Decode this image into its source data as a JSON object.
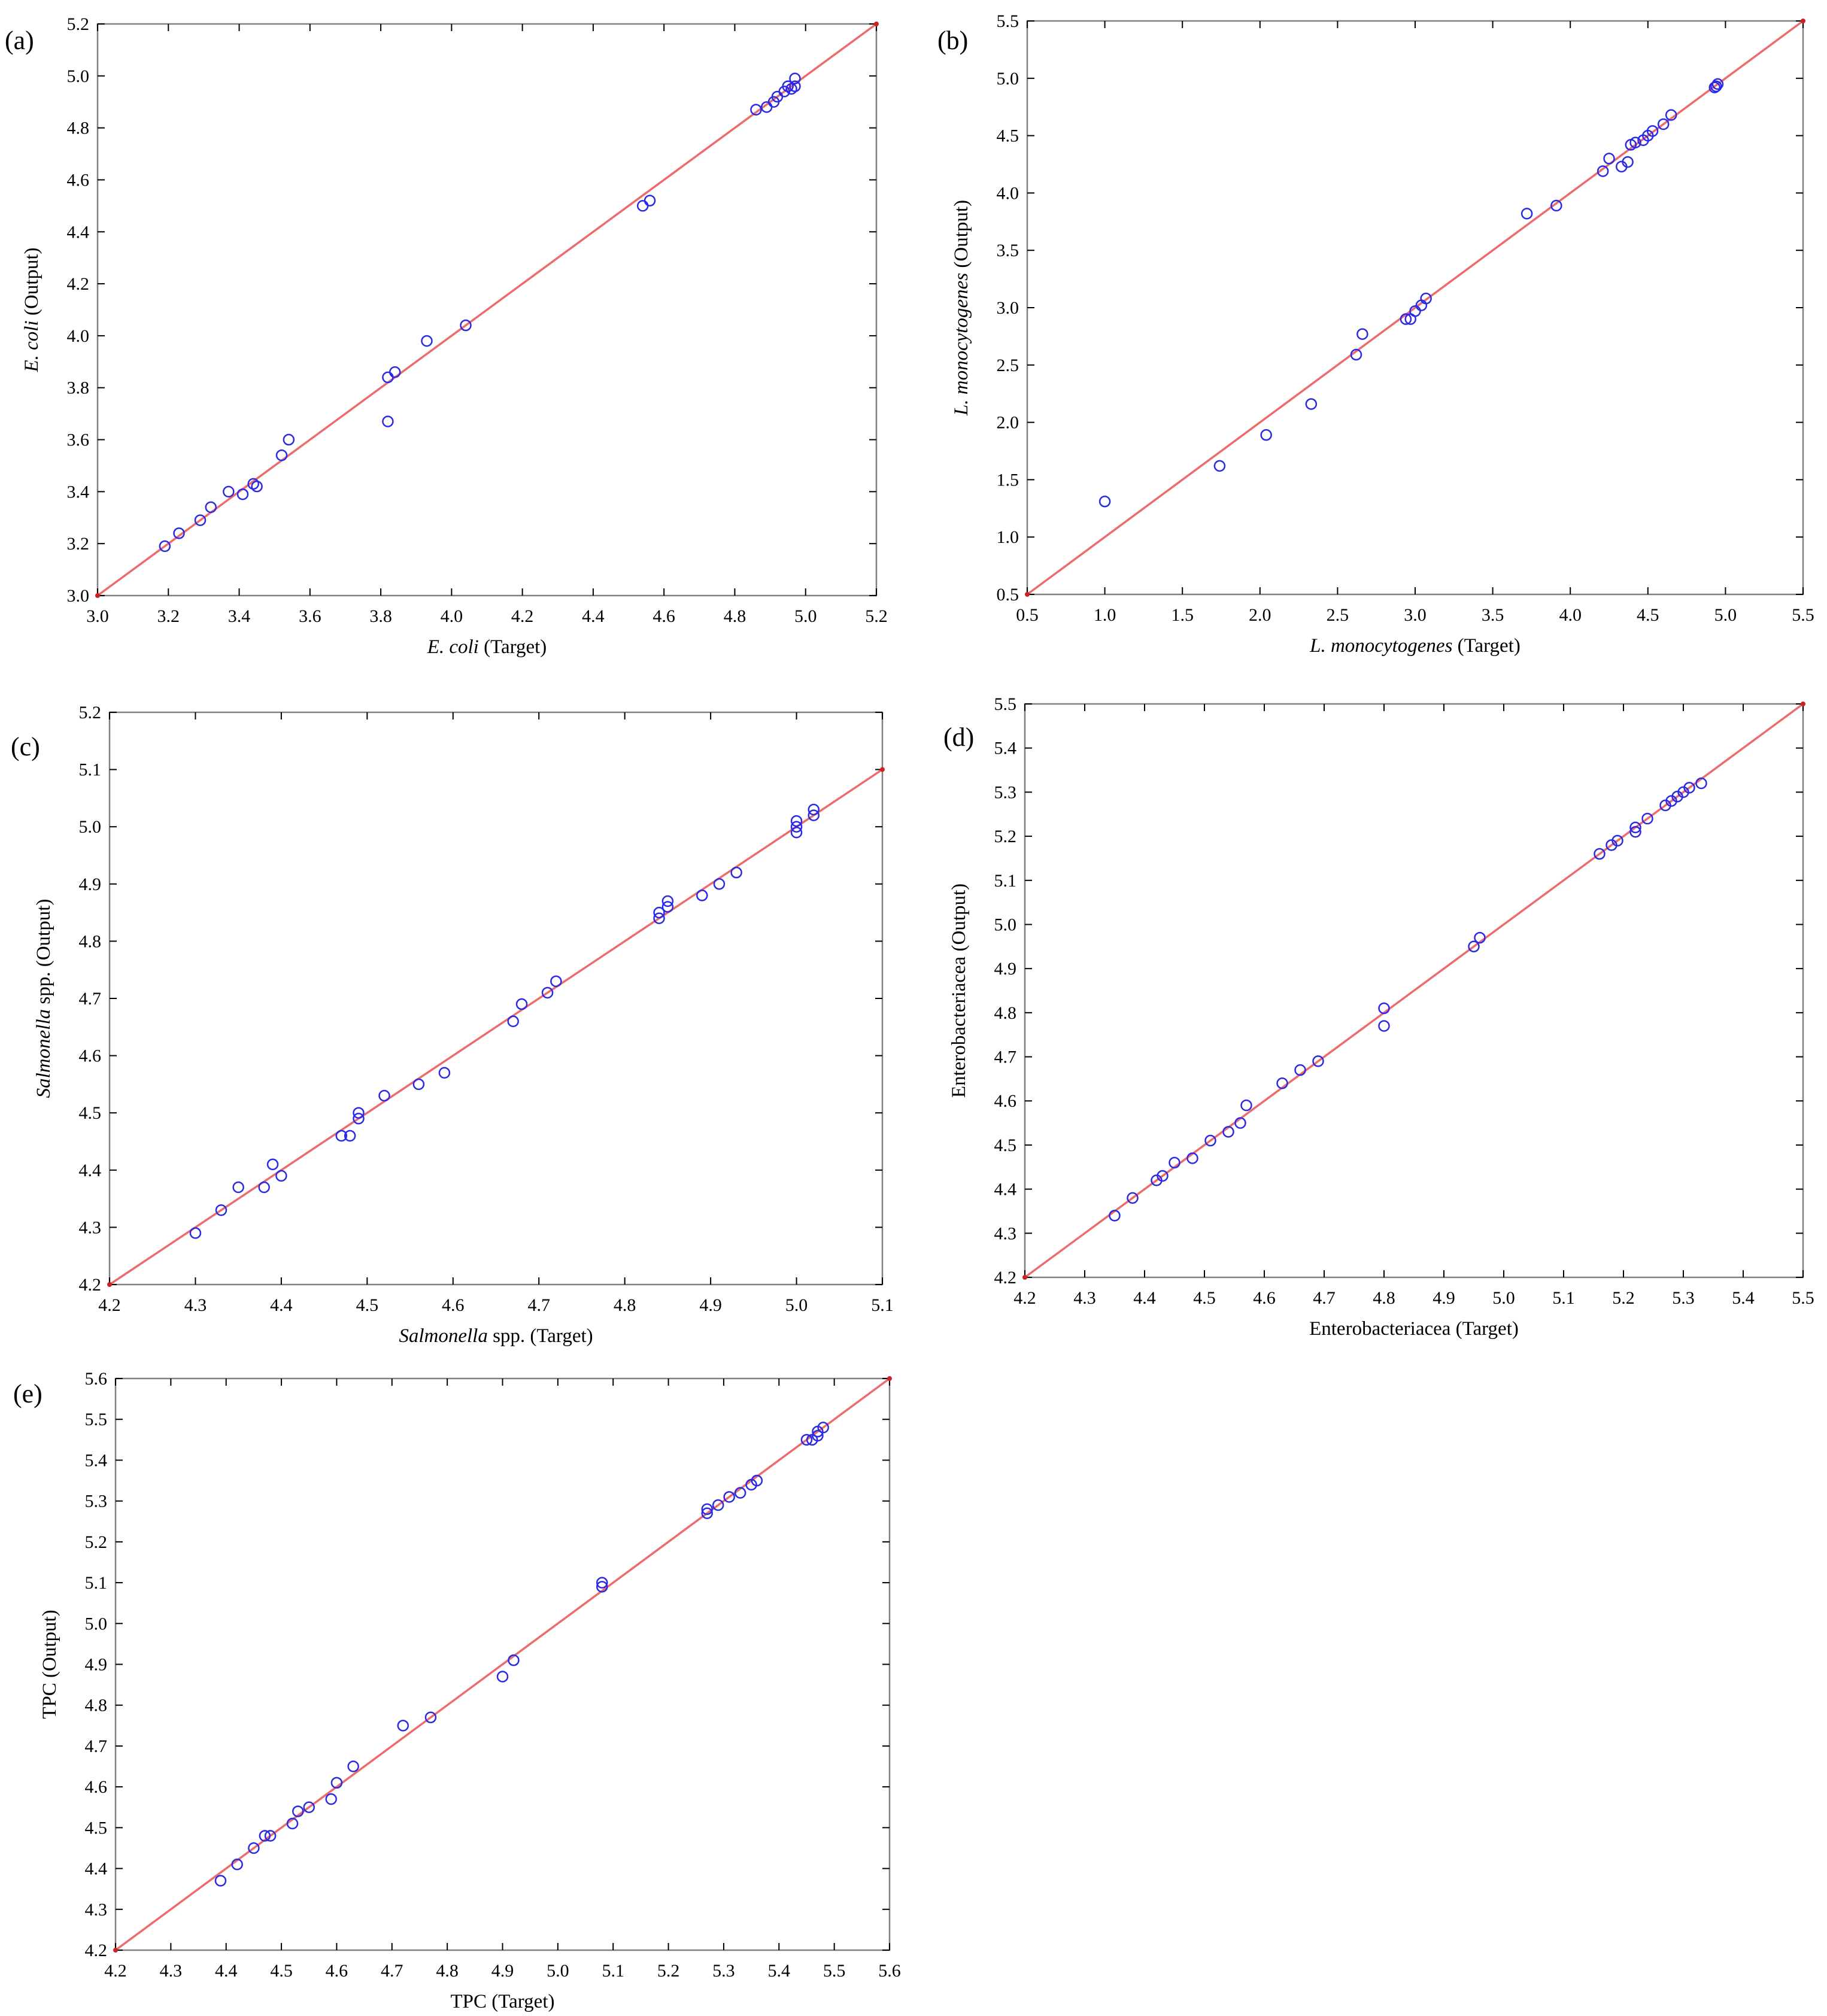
{
  "colors": {
    "points": "#2a2ae6",
    "fit_line": "#ee6b6b",
    "frame": "#808080",
    "tick": "#000000"
  },
  "chart_data": [
    {
      "panel": "(a)",
      "type": "scatter",
      "xlabel": [
        {
          "text": "E. coli",
          "italic": true
        },
        {
          "text": " (Target)",
          "italic": false
        }
      ],
      "ylabel": [
        {
          "text": "E. coli",
          "italic": true
        },
        {
          "text": " (Output)",
          "italic": false
        }
      ],
      "xlim": [
        3.0,
        5.2
      ],
      "ylim": [
        3.0,
        5.2
      ],
      "xticks": [
        "3.0",
        "3.2",
        "3.4",
        "3.6",
        "3.8",
        "4.0",
        "4.2",
        "4.4",
        "4.6",
        "4.8",
        "5.0",
        "5.2"
      ],
      "yticks": [
        "3.0",
        "3.2",
        "3.4",
        "3.6",
        "3.8",
        "4.0",
        "4.2",
        "4.4",
        "4.6",
        "4.8",
        "5.0",
        "5.2"
      ],
      "fit_line": [
        [
          3.0,
          3.0
        ],
        [
          5.2,
          5.2
        ]
      ],
      "points": [
        [
          3.19,
          3.19
        ],
        [
          3.23,
          3.24
        ],
        [
          3.29,
          3.29
        ],
        [
          3.32,
          3.34
        ],
        [
          3.37,
          3.4
        ],
        [
          3.41,
          3.39
        ],
        [
          3.44,
          3.43
        ],
        [
          3.45,
          3.42
        ],
        [
          3.52,
          3.54
        ],
        [
          3.54,
          3.6
        ],
        [
          3.82,
          3.84
        ],
        [
          3.82,
          3.67
        ],
        [
          3.84,
          3.86
        ],
        [
          3.93,
          3.98
        ],
        [
          4.04,
          4.04
        ],
        [
          4.54,
          4.5
        ],
        [
          4.56,
          4.52
        ],
        [
          4.86,
          4.87
        ],
        [
          4.89,
          4.88
        ],
        [
          4.91,
          4.9
        ],
        [
          4.92,
          4.92
        ],
        [
          4.94,
          4.94
        ],
        [
          4.95,
          4.96
        ],
        [
          4.96,
          4.95
        ],
        [
          4.97,
          4.99
        ],
        [
          4.97,
          4.96
        ]
      ],
      "grid": false,
      "legend": "none"
    },
    {
      "panel": "(b)",
      "type": "scatter",
      "xlabel": [
        {
          "text": "L. monocytogenes",
          "italic": true
        },
        {
          "text": " (Target)",
          "italic": false
        }
      ],
      "ylabel": [
        {
          "text": "L. monocytogenes",
          "italic": true
        },
        {
          "text": " (Output)",
          "italic": false
        }
      ],
      "xlim": [
        0.5,
        5.5
      ],
      "ylim": [
        0.5,
        5.5
      ],
      "xticks": [
        "0.5",
        "1.0",
        "1.5",
        "2.0",
        "2.5",
        "3.0",
        "3.5",
        "4.0",
        "4.5",
        "5.0",
        "5.5"
      ],
      "yticks": [
        "0.5",
        "1.0",
        "1.5",
        "2.0",
        "2.5",
        "3.0",
        "3.5",
        "4.0",
        "4.5",
        "5.0",
        "5.5"
      ],
      "fit_line": [
        [
          0.5,
          0.5
        ],
        [
          5.5,
          5.5
        ]
      ],
      "points": [
        [
          1.0,
          1.31
        ],
        [
          1.74,
          1.62
        ],
        [
          2.04,
          1.89
        ],
        [
          2.33,
          2.16
        ],
        [
          2.62,
          2.59
        ],
        [
          2.66,
          2.77
        ],
        [
          2.94,
          2.9
        ],
        [
          2.97,
          2.9
        ],
        [
          3.0,
          2.97
        ],
        [
          3.04,
          3.02
        ],
        [
          3.07,
          3.08
        ],
        [
          3.72,
          3.82
        ],
        [
          3.91,
          3.89
        ],
        [
          4.21,
          4.19
        ],
        [
          4.25,
          4.3
        ],
        [
          4.33,
          4.23
        ],
        [
          4.37,
          4.27
        ],
        [
          4.39,
          4.42
        ],
        [
          4.42,
          4.44
        ],
        [
          4.47,
          4.46
        ],
        [
          4.5,
          4.5
        ],
        [
          4.53,
          4.54
        ],
        [
          4.6,
          4.6
        ],
        [
          4.65,
          4.68
        ],
        [
          4.93,
          4.92
        ],
        [
          4.94,
          4.93
        ],
        [
          4.95,
          4.95
        ]
      ],
      "grid": false,
      "legend": "none"
    },
    {
      "panel": "(c)",
      "type": "scatter",
      "xlabel": [
        {
          "text": "Salmonella",
          "italic": true
        },
        {
          "text": " spp. (Target)",
          "italic": false
        }
      ],
      "ylabel": [
        {
          "text": "Salmonella",
          "italic": true
        },
        {
          "text": " spp. (Output)",
          "italic": false
        }
      ],
      "xlim": [
        4.2,
        5.1
      ],
      "ylim": [
        4.2,
        5.2
      ],
      "xticks": [
        "4.2",
        "4.3",
        "4.4",
        "4.5",
        "4.6",
        "4.7",
        "4.8",
        "4.9",
        "5.0",
        "5.1"
      ],
      "yticks": [
        "4.2",
        "4.3",
        "4.4",
        "4.5",
        "4.6",
        "4.7",
        "4.8",
        "4.9",
        "5.0",
        "5.1",
        "5.2"
      ],
      "fit_line": [
        [
          4.2,
          4.2
        ],
        [
          5.1,
          5.1
        ]
      ],
      "points": [
        [
          4.3,
          4.29
        ],
        [
          4.33,
          4.33
        ],
        [
          4.35,
          4.37
        ],
        [
          4.38,
          4.37
        ],
        [
          4.39,
          4.41
        ],
        [
          4.4,
          4.39
        ],
        [
          4.47,
          4.46
        ],
        [
          4.48,
          4.46
        ],
        [
          4.49,
          4.49
        ],
        [
          4.49,
          4.5
        ],
        [
          4.52,
          4.53
        ],
        [
          4.56,
          4.55
        ],
        [
          4.59,
          4.57
        ],
        [
          4.67,
          4.66
        ],
        [
          4.68,
          4.69
        ],
        [
          4.71,
          4.71
        ],
        [
          4.72,
          4.73
        ],
        [
          4.84,
          4.84
        ],
        [
          4.84,
          4.85
        ],
        [
          4.85,
          4.86
        ],
        [
          4.85,
          4.87
        ],
        [
          4.89,
          4.88
        ],
        [
          4.91,
          4.9
        ],
        [
          4.93,
          4.92
        ],
        [
          5.0,
          4.99
        ],
        [
          5.0,
          5.0
        ],
        [
          5.0,
          5.01
        ],
        [
          5.02,
          5.02
        ],
        [
          5.02,
          5.03
        ]
      ],
      "grid": false,
      "legend": "none"
    },
    {
      "panel": "(d)",
      "type": "scatter",
      "xlabel": [
        {
          "text": "Enterobacteriacea (Target)",
          "italic": false
        }
      ],
      "ylabel": [
        {
          "text": "Enterobacteriacea (Output)",
          "italic": false
        }
      ],
      "xlim": [
        4.2,
        5.5
      ],
      "ylim": [
        4.2,
        5.5
      ],
      "xticks": [
        "4.2",
        "4.3",
        "4.4",
        "4.5",
        "4.6",
        "4.7",
        "4.8",
        "4.9",
        "5.0",
        "5.1",
        "5.2",
        "5.3",
        "5.4",
        "5.5"
      ],
      "yticks": [
        "4.2",
        "4.3",
        "4.4",
        "4.5",
        "4.6",
        "4.7",
        "4.8",
        "4.9",
        "5.0",
        "5.1",
        "5.2",
        "5.3",
        "5.4",
        "5.5"
      ],
      "fit_line": [
        [
          4.2,
          4.2
        ],
        [
          5.5,
          5.5
        ]
      ],
      "points": [
        [
          4.35,
          4.34
        ],
        [
          4.38,
          4.38
        ],
        [
          4.42,
          4.42
        ],
        [
          4.43,
          4.43
        ],
        [
          4.45,
          4.46
        ],
        [
          4.48,
          4.47
        ],
        [
          4.51,
          4.51
        ],
        [
          4.54,
          4.53
        ],
        [
          4.56,
          4.55
        ],
        [
          4.57,
          4.59
        ],
        [
          4.63,
          4.64
        ],
        [
          4.66,
          4.67
        ],
        [
          4.69,
          4.69
        ],
        [
          4.8,
          4.81
        ],
        [
          4.8,
          4.77
        ],
        [
          4.95,
          4.95
        ],
        [
          4.96,
          4.97
        ],
        [
          5.16,
          5.16
        ],
        [
          5.18,
          5.18
        ],
        [
          5.19,
          5.19
        ],
        [
          5.22,
          5.21
        ],
        [
          5.22,
          5.22
        ],
        [
          5.24,
          5.24
        ],
        [
          5.27,
          5.27
        ],
        [
          5.28,
          5.28
        ],
        [
          5.29,
          5.29
        ],
        [
          5.3,
          5.3
        ],
        [
          5.31,
          5.31
        ],
        [
          5.33,
          5.32
        ]
      ],
      "grid": false,
      "legend": "none"
    },
    {
      "panel": "(e)",
      "type": "scatter",
      "xlabel": [
        {
          "text": "TPC (Target)",
          "italic": false
        }
      ],
      "ylabel": [
        {
          "text": "TPC (Output)",
          "italic": false
        }
      ],
      "xlim": [
        4.2,
        5.6
      ],
      "ylim": [
        4.2,
        5.6
      ],
      "xticks": [
        "4.2",
        "4.3",
        "4.4",
        "4.5",
        "4.6",
        "4.7",
        "4.8",
        "4.9",
        "5.0",
        "5.1",
        "5.2",
        "5.3",
        "5.4",
        "5.5",
        "5.6"
      ],
      "yticks": [
        "4.2",
        "4.3",
        "4.4",
        "4.5",
        "4.6",
        "4.7",
        "4.8",
        "4.9",
        "5.0",
        "5.1",
        "5.2",
        "5.3",
        "5.4",
        "5.5",
        "5.6"
      ],
      "fit_line": [
        [
          4.2,
          4.2
        ],
        [
          5.6,
          5.6
        ]
      ],
      "points": [
        [
          4.39,
          4.37
        ],
        [
          4.42,
          4.41
        ],
        [
          4.45,
          4.45
        ],
        [
          4.47,
          4.48
        ],
        [
          4.48,
          4.48
        ],
        [
          4.52,
          4.51
        ],
        [
          4.53,
          4.54
        ],
        [
          4.55,
          4.55
        ],
        [
          4.59,
          4.57
        ],
        [
          4.6,
          4.61
        ],
        [
          4.63,
          4.65
        ],
        [
          4.72,
          4.75
        ],
        [
          4.77,
          4.77
        ],
        [
          4.9,
          4.87
        ],
        [
          4.92,
          4.91
        ],
        [
          5.08,
          5.09
        ],
        [
          5.08,
          5.1
        ],
        [
          5.27,
          5.27
        ],
        [
          5.27,
          5.28
        ],
        [
          5.29,
          5.29
        ],
        [
          5.31,
          5.31
        ],
        [
          5.33,
          5.32
        ],
        [
          5.35,
          5.34
        ],
        [
          5.36,
          5.35
        ],
        [
          5.45,
          5.45
        ],
        [
          5.46,
          5.45
        ],
        [
          5.47,
          5.46
        ],
        [
          5.47,
          5.47
        ],
        [
          5.48,
          5.48
        ]
      ],
      "grid": false,
      "legend": "none"
    }
  ]
}
